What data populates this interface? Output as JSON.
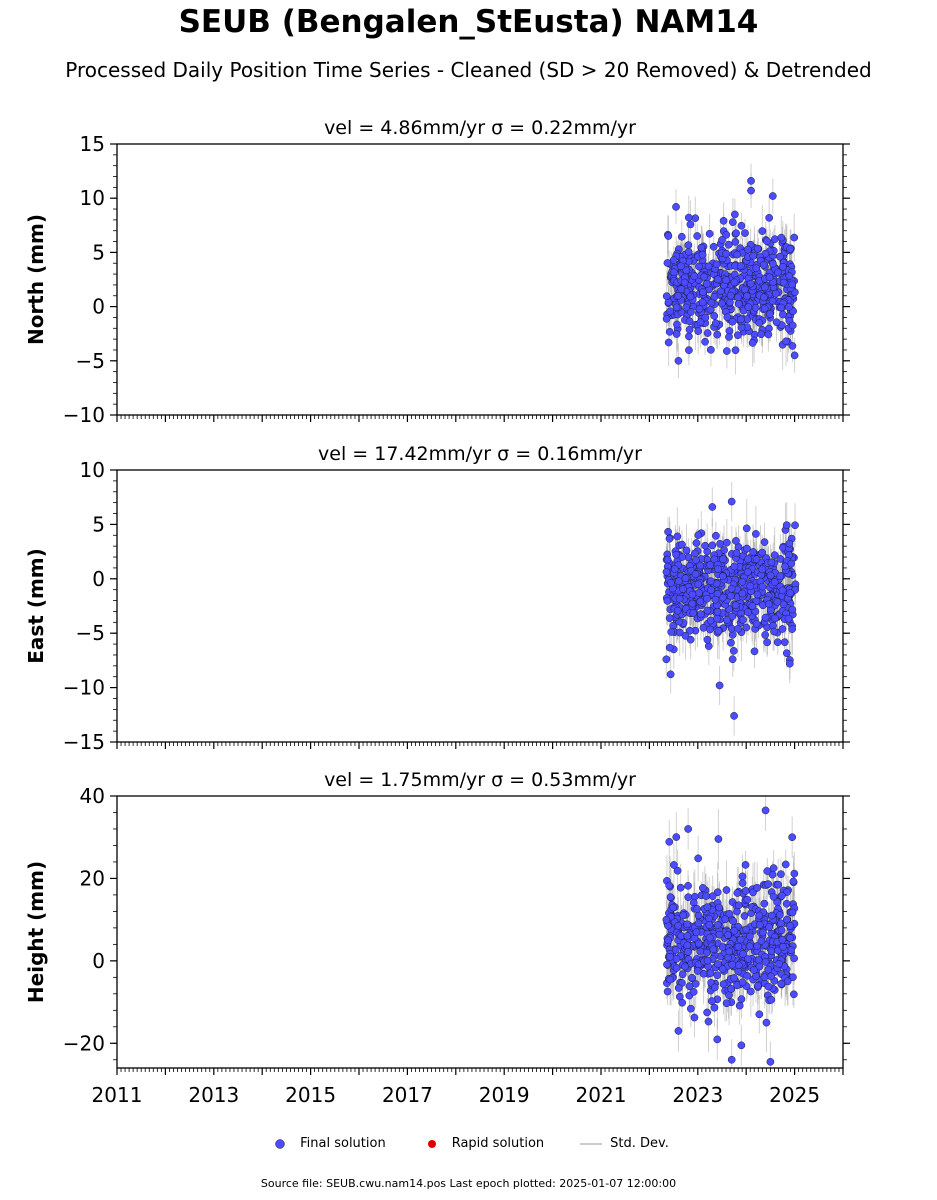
{
  "title": "SEUB (Bengalen_StEusta) NAM14",
  "subtitle": "Processed Daily Position Time Series - Cleaned (SD > 20 Removed) & Detrended",
  "legend": {
    "final": "Final solution",
    "rapid": "Rapid solution",
    "stddev": "Std. Dev."
  },
  "footer": "Source file: SEUB.cwu.nam14.pos  Last epoch plotted: 2025-01-07 12:00:00",
  "colors": {
    "final": "#4b4bff",
    "rapid": "#e00000",
    "stddev": "#bbbbbb"
  },
  "chart_data": [
    {
      "type": "scatter",
      "title": "vel = 4.86mm/yr   σ = 0.22mm/yr",
      "ylabel": "North (mm)",
      "xlim": [
        2011,
        2026
      ],
      "ylim": [
        -10,
        15
      ],
      "yticks": [
        -10,
        -5,
        0,
        5,
        10,
        15
      ],
      "x_range": [
        2022.35,
        2025.02
      ],
      "y_mean": 1.8,
      "y_sd": 2.4,
      "y_extremes": [
        [
          2024.1,
          11.6
        ],
        [
          2024.1,
          10.7
        ],
        [
          2024.55,
          10.2
        ],
        [
          2022.55,
          9.2
        ],
        [
          2022.6,
          -5.0
        ],
        [
          2025.0,
          -4.5
        ],
        [
          2023.6,
          -4.1
        ]
      ],
      "sd_mean": 1.6
    },
    {
      "type": "scatter",
      "title": "vel = 17.42mm/yr   σ = 0.16mm/yr",
      "ylabel": "East (mm)",
      "xlim": [
        2011,
        2026
      ],
      "ylim": [
        -15,
        10
      ],
      "yticks": [
        -15,
        -10,
        -5,
        0,
        5,
        10
      ],
      "x_range": [
        2022.35,
        2025.02
      ],
      "y_mean": -0.8,
      "y_sd": 2.4,
      "y_extremes": [
        [
          2023.7,
          7.1
        ],
        [
          2023.3,
          6.6
        ],
        [
          2023.75,
          -12.6
        ],
        [
          2023.45,
          -9.8
        ],
        [
          2022.35,
          -7.4
        ],
        [
          2024.9,
          -7.8
        ]
      ],
      "sd_mean": 1.8
    },
    {
      "type": "scatter",
      "title": "vel = 1.75mm/yr   σ = 0.53mm/yr",
      "ylabel": "Height (mm)",
      "xlim": [
        2011,
        2026
      ],
      "ylim": [
        -26,
        40
      ],
      "yticks": [
        -20,
        0,
        20,
        40
      ],
      "xticks": [
        2011,
        2013,
        2015,
        2017,
        2019,
        2021,
        2023,
        2025
      ],
      "x_range": [
        2022.35,
        2025.02
      ],
      "y_mean": 4.5,
      "y_sd": 7.5,
      "y_extremes": [
        [
          2024.4,
          36.5
        ],
        [
          2022.8,
          32.0
        ],
        [
          2024.95,
          30.0
        ],
        [
          2023.7,
          -24.0
        ],
        [
          2024.5,
          -24.5
        ],
        [
          2023.9,
          -20.5
        ],
        [
          2022.6,
          -17.0
        ]
      ],
      "sd_mean": 5.0
    }
  ]
}
